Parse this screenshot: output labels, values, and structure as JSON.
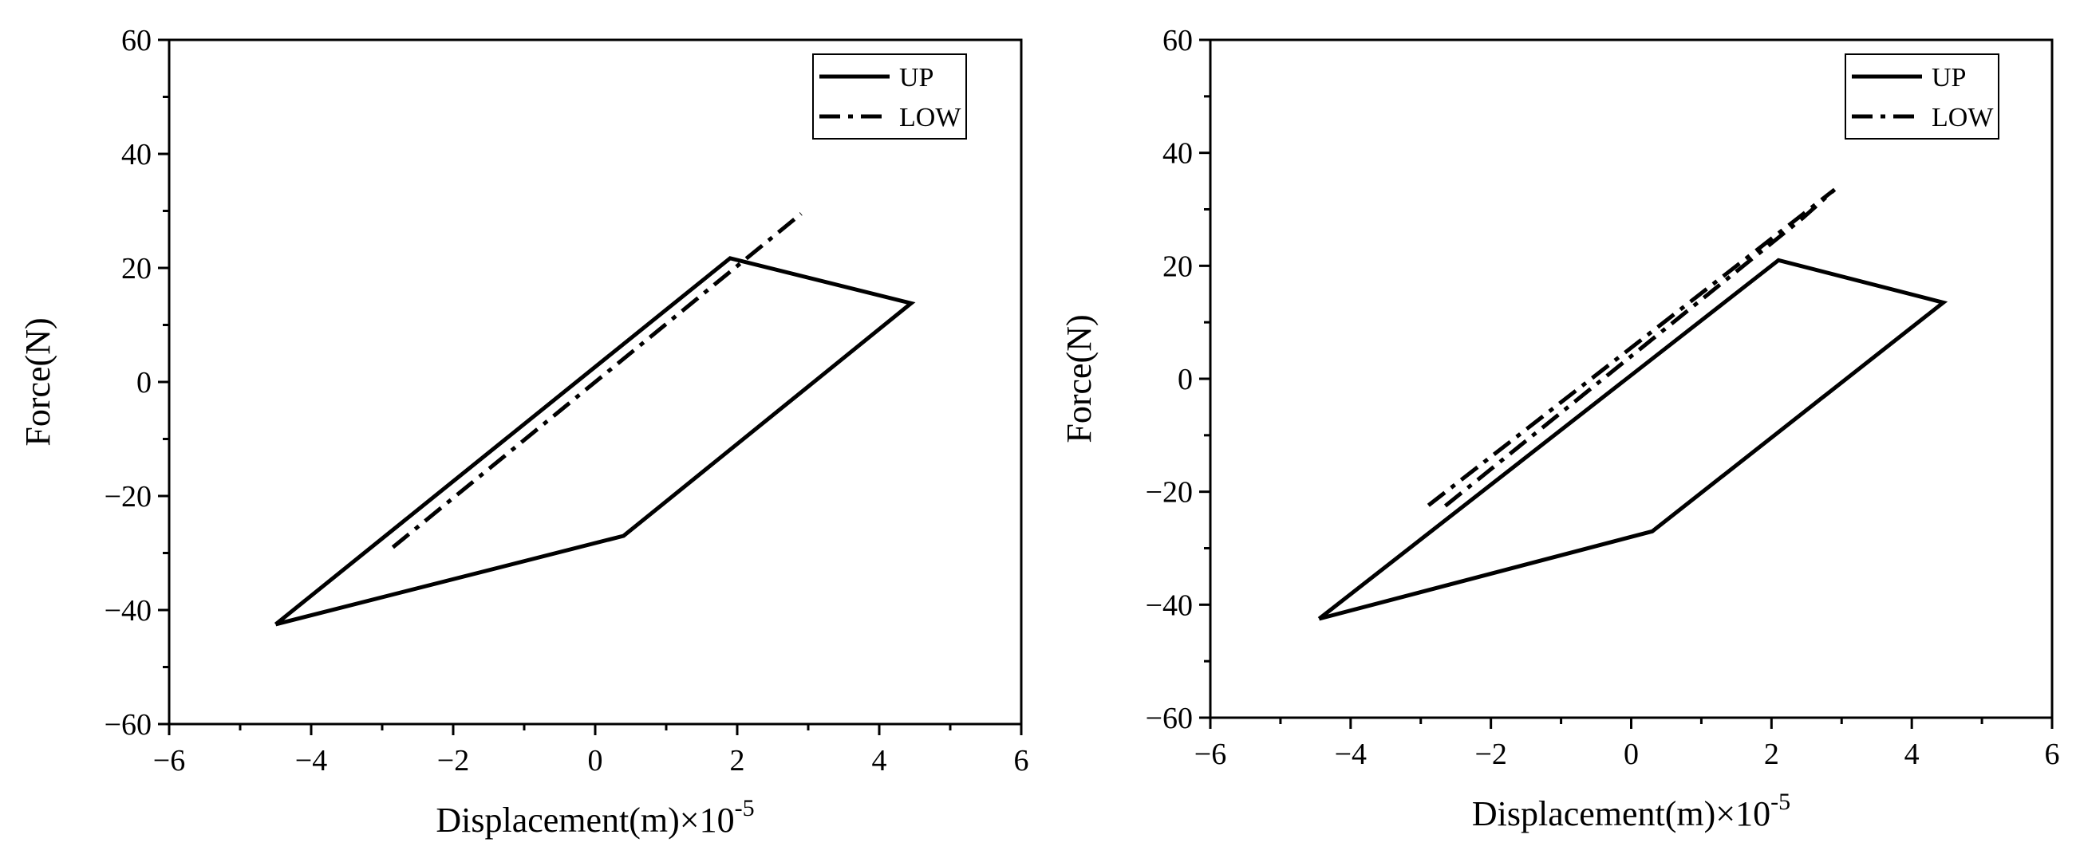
{
  "chart_data": [
    {
      "type": "line",
      "xlabel": "Displacement(m)×10",
      "xlabel_exp": "-5",
      "ylabel": "Force(N)",
      "xlim": [
        -6,
        6
      ],
      "ylim": [
        -60,
        60
      ],
      "xticks": [
        -6,
        -4,
        -2,
        0,
        2,
        4,
        6
      ],
      "yticks": [
        -60,
        -40,
        -20,
        0,
        20,
        40,
        60
      ],
      "grid": false,
      "legend_placement": "top-right",
      "series": [
        {
          "name": "UP",
          "style": "solid",
          "color": "#000000",
          "points": [
            [
              -4.5,
              -42.5
            ],
            [
              1.9,
              21.7
            ],
            [
              4.45,
              13.8
            ],
            [
              0.4,
              -27
            ],
            [
              -4.5,
              -42.5
            ]
          ]
        },
        {
          "name": "LOW",
          "style": "dash-dot",
          "color": "#000000",
          "points": [
            [
              -2.85,
              -29
            ],
            [
              2.9,
              29.5
            ]
          ]
        }
      ]
    },
    {
      "type": "line",
      "xlabel": "Displacement(m)×10",
      "xlabel_exp": "-5",
      "ylabel": "Force(N)",
      "xlim": [
        -6,
        6
      ],
      "ylim": [
        -60,
        60
      ],
      "xticks": [
        -6,
        -4,
        -2,
        0,
        2,
        4,
        6
      ],
      "yticks": [
        -60,
        -40,
        -20,
        0,
        20,
        40,
        60
      ],
      "grid": false,
      "legend_placement": "top-right",
      "series": [
        {
          "name": "UP",
          "style": "solid",
          "color": "#000000",
          "points": [
            [
              -4.45,
              -42.5
            ],
            [
              2.1,
              21.0
            ],
            [
              4.45,
              13.5
            ],
            [
              0.3,
              -27
            ],
            [
              -4.45,
              -42.5
            ]
          ]
        },
        {
          "name": "LOW",
          "style": "dash-dot",
          "color": "#000000",
          "points": [
            [
              -2.65,
              -22.5
            ],
            [
              2.45,
              28.5
            ],
            [
              2.9,
              33.5
            ],
            [
              -2.9,
              -22.5
            ]
          ]
        }
      ]
    }
  ]
}
